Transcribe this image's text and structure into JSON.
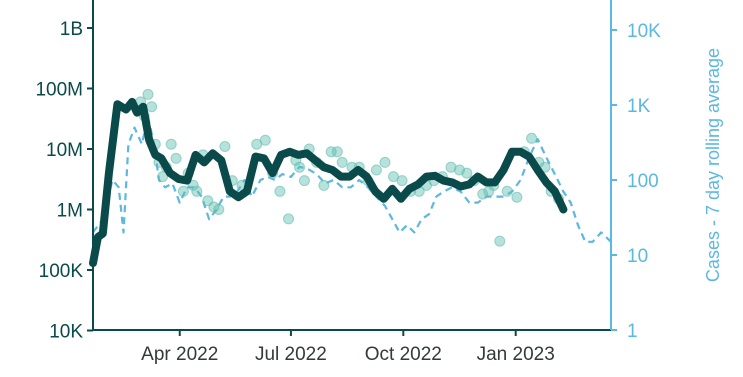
{
  "chart_data": {
    "type": "line",
    "y2label": "Cases - 7 day rolling average",
    "yscale": "log",
    "y2scale": "log",
    "ylim": [
      10000,
      1000000000
    ],
    "y2lim": [
      1,
      10000
    ],
    "xlim": [
      "2022-01-20",
      "2023-03-20"
    ],
    "grid": false,
    "colors": {
      "primary": "#0b4a4a",
      "points": "#5fbcb0",
      "secondary": "#5bb8e0"
    },
    "y_ticks": [
      {
        "value": 10000,
        "label": "10K"
      },
      {
        "value": 100000,
        "label": "100K"
      },
      {
        "value": 1000000,
        "label": "1M"
      },
      {
        "value": 10000000,
        "label": "10M"
      },
      {
        "value": 100000000,
        "label": "100M"
      },
      {
        "value": 1000000000,
        "label": "1B"
      }
    ],
    "y2_ticks": [
      {
        "value": 1,
        "label": "1"
      },
      {
        "value": 10,
        "label": "10"
      },
      {
        "value": 100,
        "label": "100"
      },
      {
        "value": 1000,
        "label": "1K"
      },
      {
        "value": 10000,
        "label": "10K"
      }
    ],
    "x_ticks": [
      {
        "value": "2022-04-01",
        "label": "Apr 2022"
      },
      {
        "value": "2022-07-01",
        "label": "Jul 2022"
      },
      {
        "value": "2022-10-01",
        "label": "Oct 2022"
      },
      {
        "value": "2023-01-01",
        "label": "Jan 2023"
      }
    ],
    "series": [
      {
        "axis": "left",
        "style": "thick-line",
        "x": [
          "2022-01-20",
          "2022-01-24",
          "2022-01-28",
          "2022-02-02",
          "2022-02-09",
          "2022-02-16",
          "2022-02-21",
          "2022-02-25",
          "2022-03-02",
          "2022-03-07",
          "2022-03-12",
          "2022-03-17",
          "2022-03-24",
          "2022-03-31",
          "2022-04-07",
          "2022-04-14",
          "2022-04-21",
          "2022-04-28",
          "2022-05-05",
          "2022-05-12",
          "2022-05-19",
          "2022-05-26",
          "2022-06-02",
          "2022-06-09",
          "2022-06-16",
          "2022-06-23",
          "2022-06-30",
          "2022-07-07",
          "2022-07-14",
          "2022-07-21",
          "2022-07-28",
          "2022-08-04",
          "2022-08-11",
          "2022-08-18",
          "2022-08-25",
          "2022-09-01",
          "2022-09-08",
          "2022-09-15",
          "2022-09-22",
          "2022-09-29",
          "2022-10-06",
          "2022-10-13",
          "2022-10-20",
          "2022-10-27",
          "2022-11-03",
          "2022-11-10",
          "2022-11-17",
          "2022-11-24",
          "2022-12-01",
          "2022-12-08",
          "2022-12-15",
          "2022-12-22",
          "2022-12-29",
          "2023-01-05",
          "2023-01-12",
          "2023-01-19",
          "2023-01-26",
          "2023-02-02",
          "2023-02-09"
        ],
        "y": [
          130000,
          350000,
          400000,
          4000000,
          55000000,
          45000000,
          60000000,
          40000000,
          50000000,
          14000000,
          8000000,
          7000000,
          4000000,
          3200000,
          3000000,
          8000000,
          6000000,
          8500000,
          6500000,
          2000000,
          1600000,
          2000000,
          7500000,
          7000000,
          4000000,
          8000000,
          9000000,
          8000000,
          8500000,
          6500000,
          5000000,
          4500000,
          3500000,
          3500000,
          4500000,
          3500000,
          2000000,
          1500000,
          2200000,
          1500000,
          2200000,
          2600000,
          3500000,
          3600000,
          3000000,
          2800000,
          2400000,
          2600000,
          3500000,
          2800000,
          2800000,
          4500000,
          9000000,
          9000000,
          7500000,
          4500000,
          2800000,
          2000000,
          1000000
        ]
      },
      {
        "axis": "left",
        "style": "points",
        "x": [
          "2022-02-28",
          "2022-03-03",
          "2022-03-06",
          "2022-03-09",
          "2022-03-12",
          "2022-03-15",
          "2022-03-18",
          "2022-03-21",
          "2022-03-25",
          "2022-03-29",
          "2022-04-04",
          "2022-04-08",
          "2022-04-12",
          "2022-04-15",
          "2022-04-20",
          "2022-04-24",
          "2022-04-29",
          "2022-05-03",
          "2022-05-08",
          "2022-05-14",
          "2022-05-22",
          "2022-06-03",
          "2022-06-10",
          "2022-06-16",
          "2022-06-22",
          "2022-06-29",
          "2022-07-05",
          "2022-07-08",
          "2022-07-12",
          "2022-07-16",
          "2022-07-22",
          "2022-07-28",
          "2022-08-03",
          "2022-08-08",
          "2022-08-12",
          "2022-08-20",
          "2022-08-26",
          "2022-09-02",
          "2022-09-09",
          "2022-09-16",
          "2022-09-23",
          "2022-09-30",
          "2022-10-07",
          "2022-10-14",
          "2022-10-20",
          "2022-10-26",
          "2022-11-02",
          "2022-11-09",
          "2022-11-16",
          "2022-11-22",
          "2022-11-28",
          "2022-12-05",
          "2022-12-10",
          "2022-12-14",
          "2022-12-19",
          "2022-12-25",
          "2023-01-02",
          "2023-01-08",
          "2023-01-14",
          "2023-01-20",
          "2023-01-25",
          "2023-01-30",
          "2023-02-05"
        ],
        "y": [
          60000000,
          35000000,
          80000000,
          50000000,
          12000000,
          6000000,
          3500000,
          5000000,
          12000000,
          7000000,
          2000000,
          4000000,
          2500000,
          2000000,
          8000000,
          1400000,
          1100000,
          1000000,
          11000000,
          3000000,
          2500000,
          12000000,
          14000000,
          4000000,
          2000000,
          700000,
          6500000,
          5000000,
          3000000,
          10000000,
          6000000,
          2500000,
          9000000,
          9000000,
          6000000,
          5000000,
          5000000,
          3000000,
          4500000,
          6000000,
          3500000,
          3000000,
          2000000,
          2000000,
          2500000,
          3000000,
          3500000,
          5000000,
          4500000,
          4000000,
          3000000,
          1800000,
          2000000,
          2500000,
          300000,
          2000000,
          1600000,
          9000000,
          15000000,
          6000000,
          5000000,
          2000000,
          1500000
        ]
      },
      {
        "axis": "right",
        "style": "dashed-line",
        "x": [
          "2022-01-20",
          "2022-01-28",
          "2022-02-05",
          "2022-02-10",
          "2022-02-14",
          "2022-02-18",
          "2022-02-23",
          "2022-03-01",
          "2022-03-06",
          "2022-03-11",
          "2022-03-15",
          "2022-03-20",
          "2022-03-26",
          "2022-04-01",
          "2022-04-07",
          "2022-04-13",
          "2022-04-19",
          "2022-04-25",
          "2022-05-01",
          "2022-05-07",
          "2022-05-12",
          "2022-05-18",
          "2022-05-24",
          "2022-05-30",
          "2022-06-06",
          "2022-06-12",
          "2022-06-18",
          "2022-06-24",
          "2022-07-01",
          "2022-07-08",
          "2022-07-15",
          "2022-07-22",
          "2022-07-29",
          "2022-08-05",
          "2022-08-12",
          "2022-08-19",
          "2022-08-26",
          "2022-09-02",
          "2022-09-09",
          "2022-09-16",
          "2022-09-22",
          "2022-09-28",
          "2022-10-04",
          "2022-10-10",
          "2022-10-16",
          "2022-10-22",
          "2022-10-28",
          "2022-11-03",
          "2022-11-10",
          "2022-11-17",
          "2022-11-24",
          "2022-12-01",
          "2022-12-08",
          "2022-12-15",
          "2022-12-22",
          "2022-12-29",
          "2023-01-05",
          "2023-01-12",
          "2023-01-19",
          "2023-01-26",
          "2023-02-02",
          "2023-02-09",
          "2023-02-15",
          "2023-02-21",
          "2023-02-27",
          "2023-03-05",
          "2023-03-12",
          "2023-03-20"
        ],
        "y": [
          20,
          30,
          100,
          80,
          20,
          300,
          500,
          300,
          700,
          300,
          100,
          80,
          90,
          50,
          80,
          80,
          60,
          30,
          40,
          60,
          60,
          70,
          100,
          60,
          100,
          110,
          100,
          120,
          110,
          150,
          140,
          120,
          90,
          100,
          80,
          80,
          100,
          80,
          60,
          45,
          30,
          20,
          25,
          20,
          30,
          35,
          60,
          70,
          80,
          70,
          50,
          50,
          60,
          60,
          60,
          70,
          100,
          200,
          350,
          200,
          120,
          70,
          50,
          25,
          15,
          15,
          20,
          15
        ]
      }
    ]
  }
}
